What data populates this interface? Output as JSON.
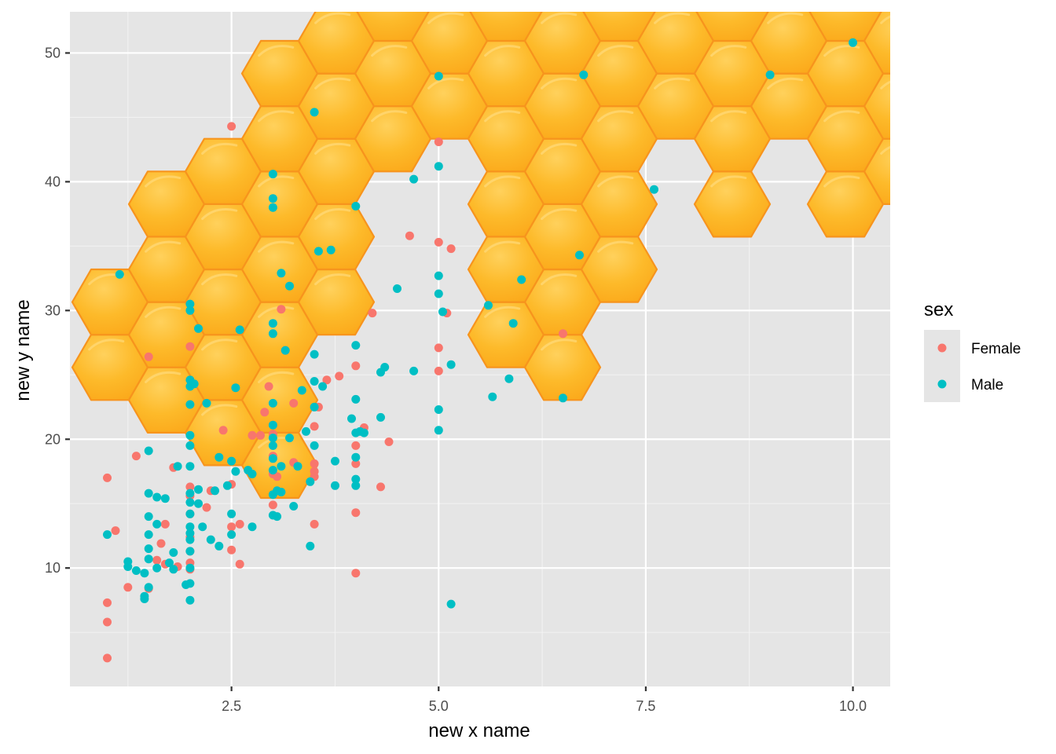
{
  "chart_data": {
    "type": "scatter",
    "title": "",
    "xlabel": "new x name",
    "ylabel": "new y name",
    "xlim": [
      0.55,
      10.45
    ],
    "ylim": [
      0.8,
      53.2
    ],
    "x_ticks": [
      2.5,
      5.0,
      7.5,
      10.0
    ],
    "x_tick_labels": [
      "2.5",
      "5.0",
      "7.5",
      "10.0"
    ],
    "y_ticks": [
      10,
      20,
      30,
      40,
      50
    ],
    "y_tick_labels": [
      "10",
      "20",
      "30",
      "40",
      "50"
    ],
    "background": "honeycomb image",
    "colors": {
      "Female": "#F8766D",
      "Male": "#00BFC4",
      "panel": "#e5e5e5",
      "grid": "#ffffff",
      "honey": "#FDB827",
      "honey_edge": "#F7941D"
    },
    "legend": {
      "title": "sex",
      "position": "right",
      "entries": [
        "Female",
        "Male"
      ]
    },
    "series": [
      {
        "name": "Female",
        "points": [
          [
            1,
            3
          ],
          [
            1,
            5.8
          ],
          [
            1,
            7.3
          ],
          [
            1,
            17
          ],
          [
            1.1,
            12.9
          ],
          [
            1.25,
            8.5
          ],
          [
            1.35,
            18.7
          ],
          [
            1.5,
            26.4
          ],
          [
            1.5,
            8.4
          ],
          [
            1.6,
            10.6
          ],
          [
            1.65,
            11.9
          ],
          [
            1.7,
            13.4
          ],
          [
            1.7,
            10.3
          ],
          [
            1.8,
            17.8
          ],
          [
            1.85,
            10.1
          ],
          [
            2,
            12.4
          ],
          [
            2,
            14.2
          ],
          [
            2,
            11.3
          ],
          [
            2,
            9.9
          ],
          [
            2,
            16.3
          ],
          [
            2,
            27.2
          ],
          [
            2,
            15.6
          ],
          [
            2,
            10.4
          ],
          [
            2.2,
            14.7
          ],
          [
            2.25,
            16
          ],
          [
            2.4,
            20.7
          ],
          [
            2.5,
            16.5
          ],
          [
            2.5,
            13.2
          ],
          [
            2.5,
            11.4
          ],
          [
            2.5,
            44.3
          ],
          [
            2.6,
            10.3
          ],
          [
            2.6,
            13.4
          ],
          [
            2.75,
            20.3
          ],
          [
            2.85,
            20.3
          ],
          [
            2.9,
            22.1
          ],
          [
            2.95,
            24.1
          ],
          [
            3,
            18.7
          ],
          [
            3,
            17.3
          ],
          [
            3,
            14.9
          ],
          [
            3,
            20.4
          ],
          [
            3.05,
            17.1
          ],
          [
            3.1,
            30.1
          ],
          [
            3.15,
            26.9
          ],
          [
            3.25,
            22.8
          ],
          [
            3.25,
            18.2
          ],
          [
            3.5,
            21
          ],
          [
            3.5,
            18.1
          ],
          [
            3.5,
            17.5
          ],
          [
            3.5,
            17.1
          ],
          [
            3.5,
            13.4
          ],
          [
            3.55,
            22.5
          ],
          [
            3.65,
            24.6
          ],
          [
            3.8,
            24.9
          ],
          [
            4,
            25.7
          ],
          [
            4,
            19.5
          ],
          [
            4,
            18.1
          ],
          [
            4,
            14.3
          ],
          [
            4,
            9.6
          ],
          [
            4.1,
            20.9
          ],
          [
            4.3,
            16.3
          ],
          [
            4.4,
            19.8
          ],
          [
            4.2,
            29.8
          ],
          [
            4.65,
            35.8
          ],
          [
            5,
            43.1
          ],
          [
            5,
            35.3
          ],
          [
            5,
            27.1
          ],
          [
            5,
            25.3
          ],
          [
            5.15,
            34.8
          ],
          [
            5.1,
            29.8
          ],
          [
            6.5,
            28.2
          ]
        ]
      },
      {
        "name": "Male",
        "points": [
          [
            1,
            12.6
          ],
          [
            1.15,
            32.8
          ],
          [
            1.25,
            10.1
          ],
          [
            1.25,
            10.5
          ],
          [
            1.35,
            9.8
          ],
          [
            1.45,
            7.8
          ],
          [
            1.45,
            7.6
          ],
          [
            1.45,
            9.6
          ],
          [
            1.5,
            8.5
          ],
          [
            1.5,
            10.7
          ],
          [
            1.5,
            11.5
          ],
          [
            1.5,
            12.6
          ],
          [
            1.5,
            14
          ],
          [
            1.5,
            15.8
          ],
          [
            1.5,
            19.1
          ],
          [
            1.6,
            13.4
          ],
          [
            1.6,
            15.5
          ],
          [
            1.6,
            10
          ],
          [
            1.7,
            15.4
          ],
          [
            1.75,
            10.4
          ],
          [
            1.8,
            9.9
          ],
          [
            1.8,
            11.2
          ],
          [
            1.85,
            17.9
          ],
          [
            1.95,
            8.7
          ],
          [
            2,
            7.5
          ],
          [
            2,
            8.8
          ],
          [
            2,
            10
          ],
          [
            2,
            11.3
          ],
          [
            2,
            12.2
          ],
          [
            2,
            12.7
          ],
          [
            2,
            13.2
          ],
          [
            2,
            14.2
          ],
          [
            2,
            15.1
          ],
          [
            2,
            15.8
          ],
          [
            2,
            17.9
          ],
          [
            2,
            19.5
          ],
          [
            2,
            20.3
          ],
          [
            2,
            22.7
          ],
          [
            2,
            24.1
          ],
          [
            2,
            24.6
          ],
          [
            2,
            30
          ],
          [
            2,
            30.5
          ],
          [
            2.05,
            24.3
          ],
          [
            2.1,
            28.6
          ],
          [
            2.1,
            16.1
          ],
          [
            2.1,
            15
          ],
          [
            2.15,
            13.2
          ],
          [
            2.2,
            22.8
          ],
          [
            2.25,
            12.2
          ],
          [
            2.3,
            16
          ],
          [
            2.35,
            11.7
          ],
          [
            2.35,
            18.6
          ],
          [
            2.45,
            16.4
          ],
          [
            2.5,
            14.2
          ],
          [
            2.5,
            12.6
          ],
          [
            2.5,
            18.3
          ],
          [
            2.55,
            24
          ],
          [
            2.55,
            17.5
          ],
          [
            2.6,
            28.5
          ],
          [
            2.7,
            17.6
          ],
          [
            2.75,
            17.3
          ],
          [
            2.75,
            13.2
          ],
          [
            3,
            40.6
          ],
          [
            3,
            38.7
          ],
          [
            3,
            38
          ],
          [
            3,
            29
          ],
          [
            3,
            28.2
          ],
          [
            3,
            22.8
          ],
          [
            3,
            21.1
          ],
          [
            3,
            20.1
          ],
          [
            3,
            19.5
          ],
          [
            3,
            18.5
          ],
          [
            3,
            17.6
          ],
          [
            3,
            15.7
          ],
          [
            3,
            14.1
          ],
          [
            3.05,
            14
          ],
          [
            3.05,
            16
          ],
          [
            3.1,
            17.9
          ],
          [
            3.1,
            15.9
          ],
          [
            3.1,
            32.9
          ],
          [
            3.15,
            26.9
          ],
          [
            3.2,
            31.9
          ],
          [
            3.2,
            20.1
          ],
          [
            3.25,
            14.8
          ],
          [
            3.3,
            17.9
          ],
          [
            3.35,
            23.8
          ],
          [
            3.4,
            20.6
          ],
          [
            3.45,
            11.7
          ],
          [
            3.45,
            16.7
          ],
          [
            3.5,
            26.6
          ],
          [
            3.5,
            24.5
          ],
          [
            3.5,
            19.5
          ],
          [
            3.5,
            22.5
          ],
          [
            3.5,
            45.4
          ],
          [
            3.55,
            34.6
          ],
          [
            3.6,
            24.1
          ],
          [
            3.7,
            34.7
          ],
          [
            3.75,
            16.4
          ],
          [
            3.75,
            18.3
          ],
          [
            3.95,
            21.6
          ],
          [
            4,
            38.1
          ],
          [
            4,
            27.3
          ],
          [
            4,
            23.1
          ],
          [
            4,
            20.5
          ],
          [
            4,
            18.6
          ],
          [
            4,
            16.9
          ],
          [
            4,
            16.4
          ],
          [
            4.05,
            20.6
          ],
          [
            4.1,
            20.5
          ],
          [
            4.3,
            25.2
          ],
          [
            4.3,
            21.7
          ],
          [
            4.35,
            25.6
          ],
          [
            4.5,
            31.7
          ],
          [
            4.7,
            25.3
          ],
          [
            4.7,
            40.2
          ],
          [
            5,
            48.2
          ],
          [
            5,
            41.2
          ],
          [
            5,
            32.7
          ],
          [
            5,
            31.3
          ],
          [
            5,
            22.3
          ],
          [
            5,
            20.7
          ],
          [
            5.05,
            29.9
          ],
          [
            5.15,
            7.2
          ],
          [
            5.15,
            25.8
          ],
          [
            5.6,
            30.4
          ],
          [
            5.65,
            23.3
          ],
          [
            5.85,
            24.7
          ],
          [
            5.9,
            29
          ],
          [
            6,
            32.4
          ],
          [
            6.5,
            23.2
          ],
          [
            6.7,
            34.3
          ],
          [
            6.75,
            48.3
          ],
          [
            7.6,
            39.4
          ],
          [
            9,
            48.3
          ],
          [
            10,
            50.8
          ]
        ]
      }
    ]
  }
}
